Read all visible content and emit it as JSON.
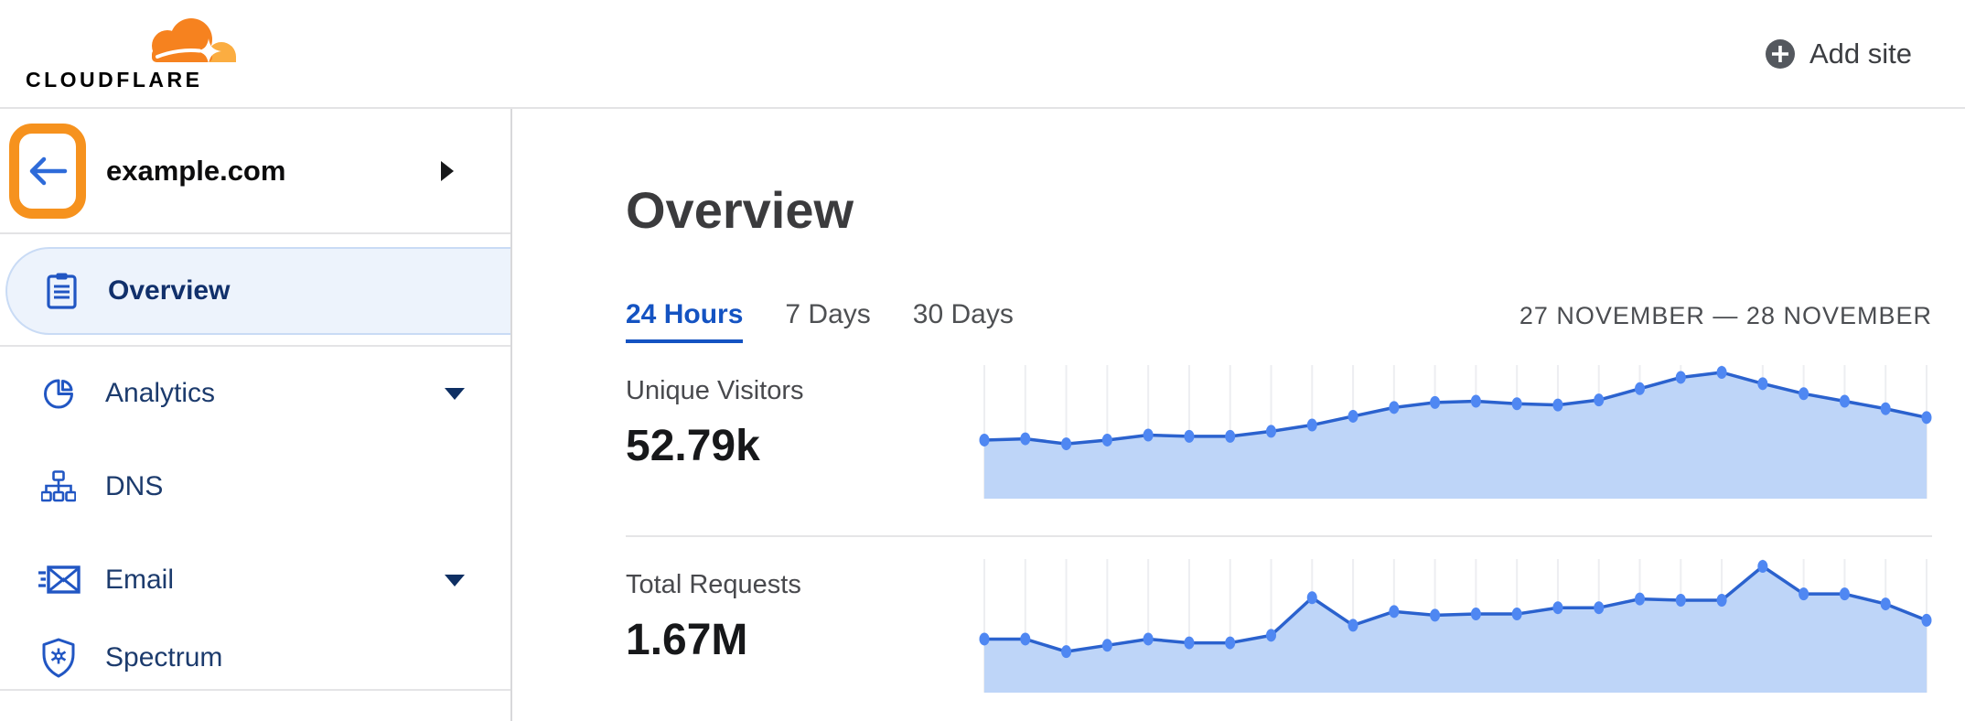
{
  "header": {
    "brand": "CLOUDFLARE",
    "add_site": "Add site"
  },
  "sidebar": {
    "site_name": "example.com",
    "items": [
      {
        "label": "Overview",
        "icon": "clipboard-icon",
        "selected": true,
        "expandable": false
      },
      {
        "label": "Analytics",
        "icon": "pie-chart-icon",
        "selected": false,
        "expandable": true
      },
      {
        "label": "DNS",
        "icon": "dns-tree-icon",
        "selected": false,
        "expandable": false
      },
      {
        "label": "Email",
        "icon": "email-envelope-icon",
        "selected": false,
        "expandable": true
      },
      {
        "label": "Spectrum",
        "icon": "shield-icon",
        "selected": false,
        "expandable": false
      }
    ]
  },
  "main": {
    "title": "Overview",
    "tabs": [
      {
        "label": "24 Hours",
        "active": true
      },
      {
        "label": "7 Days",
        "active": false
      },
      {
        "label": "30 Days",
        "active": false
      }
    ],
    "date_range": "27 NOVEMBER — 28 NOVEMBER",
    "metrics": [
      {
        "label": "Unique Visitors",
        "value": "52.79k"
      },
      {
        "label": "Total Requests",
        "value": "1.67M"
      }
    ]
  },
  "colors": {
    "accent_blue": "#1453c2",
    "nav_navy": "#1c3b6d",
    "icon_blue": "#2156c3",
    "annotation_orange": "#f6921e",
    "brand_orange": "#f6821f",
    "brand_light_orange": "#fbad41",
    "chart_line": "#2b62ce",
    "chart_dot": "#4f87f2",
    "chart_fill": "#bed5f8",
    "chart_grid": "#edeef1",
    "divider_gray": "#e4e4e6"
  },
  "chart_data": [
    {
      "type": "area",
      "title": "Unique Visitors",
      "displayed_total": "52.79k",
      "x_range": [
        "27 November",
        "28 November"
      ],
      "x_unit": "hourly points over 24 Hours view",
      "n_points": 24,
      "values_pct_of_peak": [
        46,
        47,
        43,
        46,
        50,
        49,
        49,
        53,
        58,
        65,
        72,
        76,
        77,
        75,
        74,
        78,
        87,
        96,
        100,
        91,
        83,
        77,
        71,
        64
      ],
      "y_axis_labels": "none shown",
      "grid": "vertical gridline at each point",
      "legend": false
    },
    {
      "type": "area",
      "title": "Total Requests",
      "displayed_total": "1.67M",
      "x_range": [
        "27 November",
        "28 November"
      ],
      "x_unit": "hourly points over 24 Hours view",
      "n_points": 24,
      "values_pct_of_peak": [
        42,
        42,
        32,
        37,
        42,
        39,
        39,
        45,
        75,
        53,
        64,
        61,
        62,
        62,
        67,
        67,
        74,
        73,
        73,
        100,
        78,
        78,
        70,
        57
      ],
      "y_axis_labels": "none shown",
      "grid": "vertical gridline at each point",
      "legend": false
    }
  ]
}
